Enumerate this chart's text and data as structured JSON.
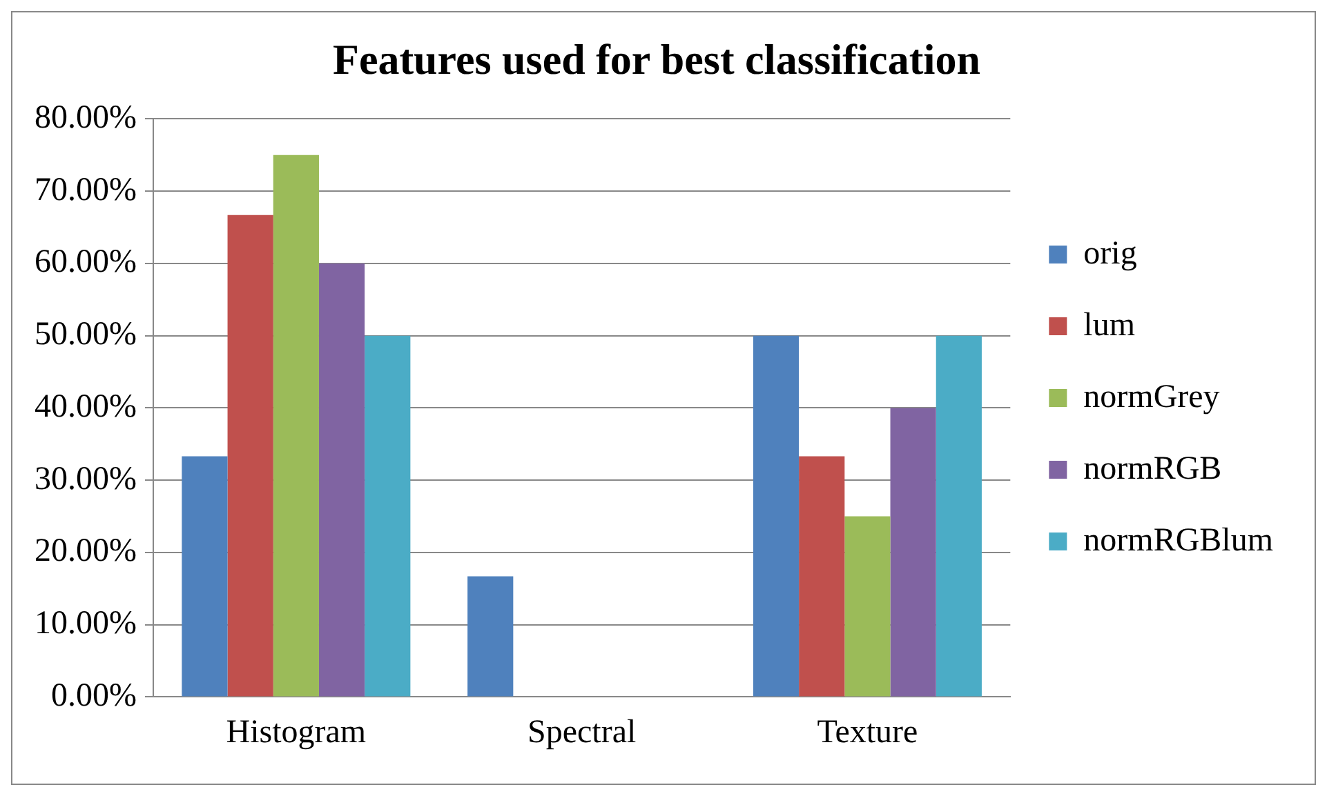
{
  "chart_data": {
    "type": "bar",
    "title": "Features used for best classification",
    "categories": [
      "Histogram",
      "Spectral",
      "Texture"
    ],
    "series": [
      {
        "name": "orig",
        "color": "#4f81bd",
        "values": [
          33.3,
          16.7,
          50
        ]
      },
      {
        "name": "lum",
        "color": "#c0504d",
        "values": [
          66.7,
          0,
          33.3
        ]
      },
      {
        "name": "normGrey",
        "color": "#9bbb59",
        "values": [
          75,
          0,
          25
        ]
      },
      {
        "name": "normRGB",
        "color": "#8064a2",
        "values": [
          60,
          0,
          40
        ]
      },
      {
        "name": "normRGBlum",
        "color": "#4bacc6",
        "values": [
          50,
          0,
          50
        ]
      }
    ],
    "ylim": [
      0,
      80
    ],
    "yticks": [
      {
        "value": 0,
        "label": "0.00%"
      },
      {
        "value": 10,
        "label": "10.00%"
      },
      {
        "value": 20,
        "label": "20.00%"
      },
      {
        "value": 30,
        "label": "30.00%"
      },
      {
        "value": 40,
        "label": "40.00%"
      },
      {
        "value": 50,
        "label": "50.00%"
      },
      {
        "value": 60,
        "label": "60.00%"
      },
      {
        "value": 70,
        "label": "70.00%"
      },
      {
        "value": 80,
        "label": "80.00%"
      }
    ],
    "grid": "y",
    "legend": "right"
  }
}
